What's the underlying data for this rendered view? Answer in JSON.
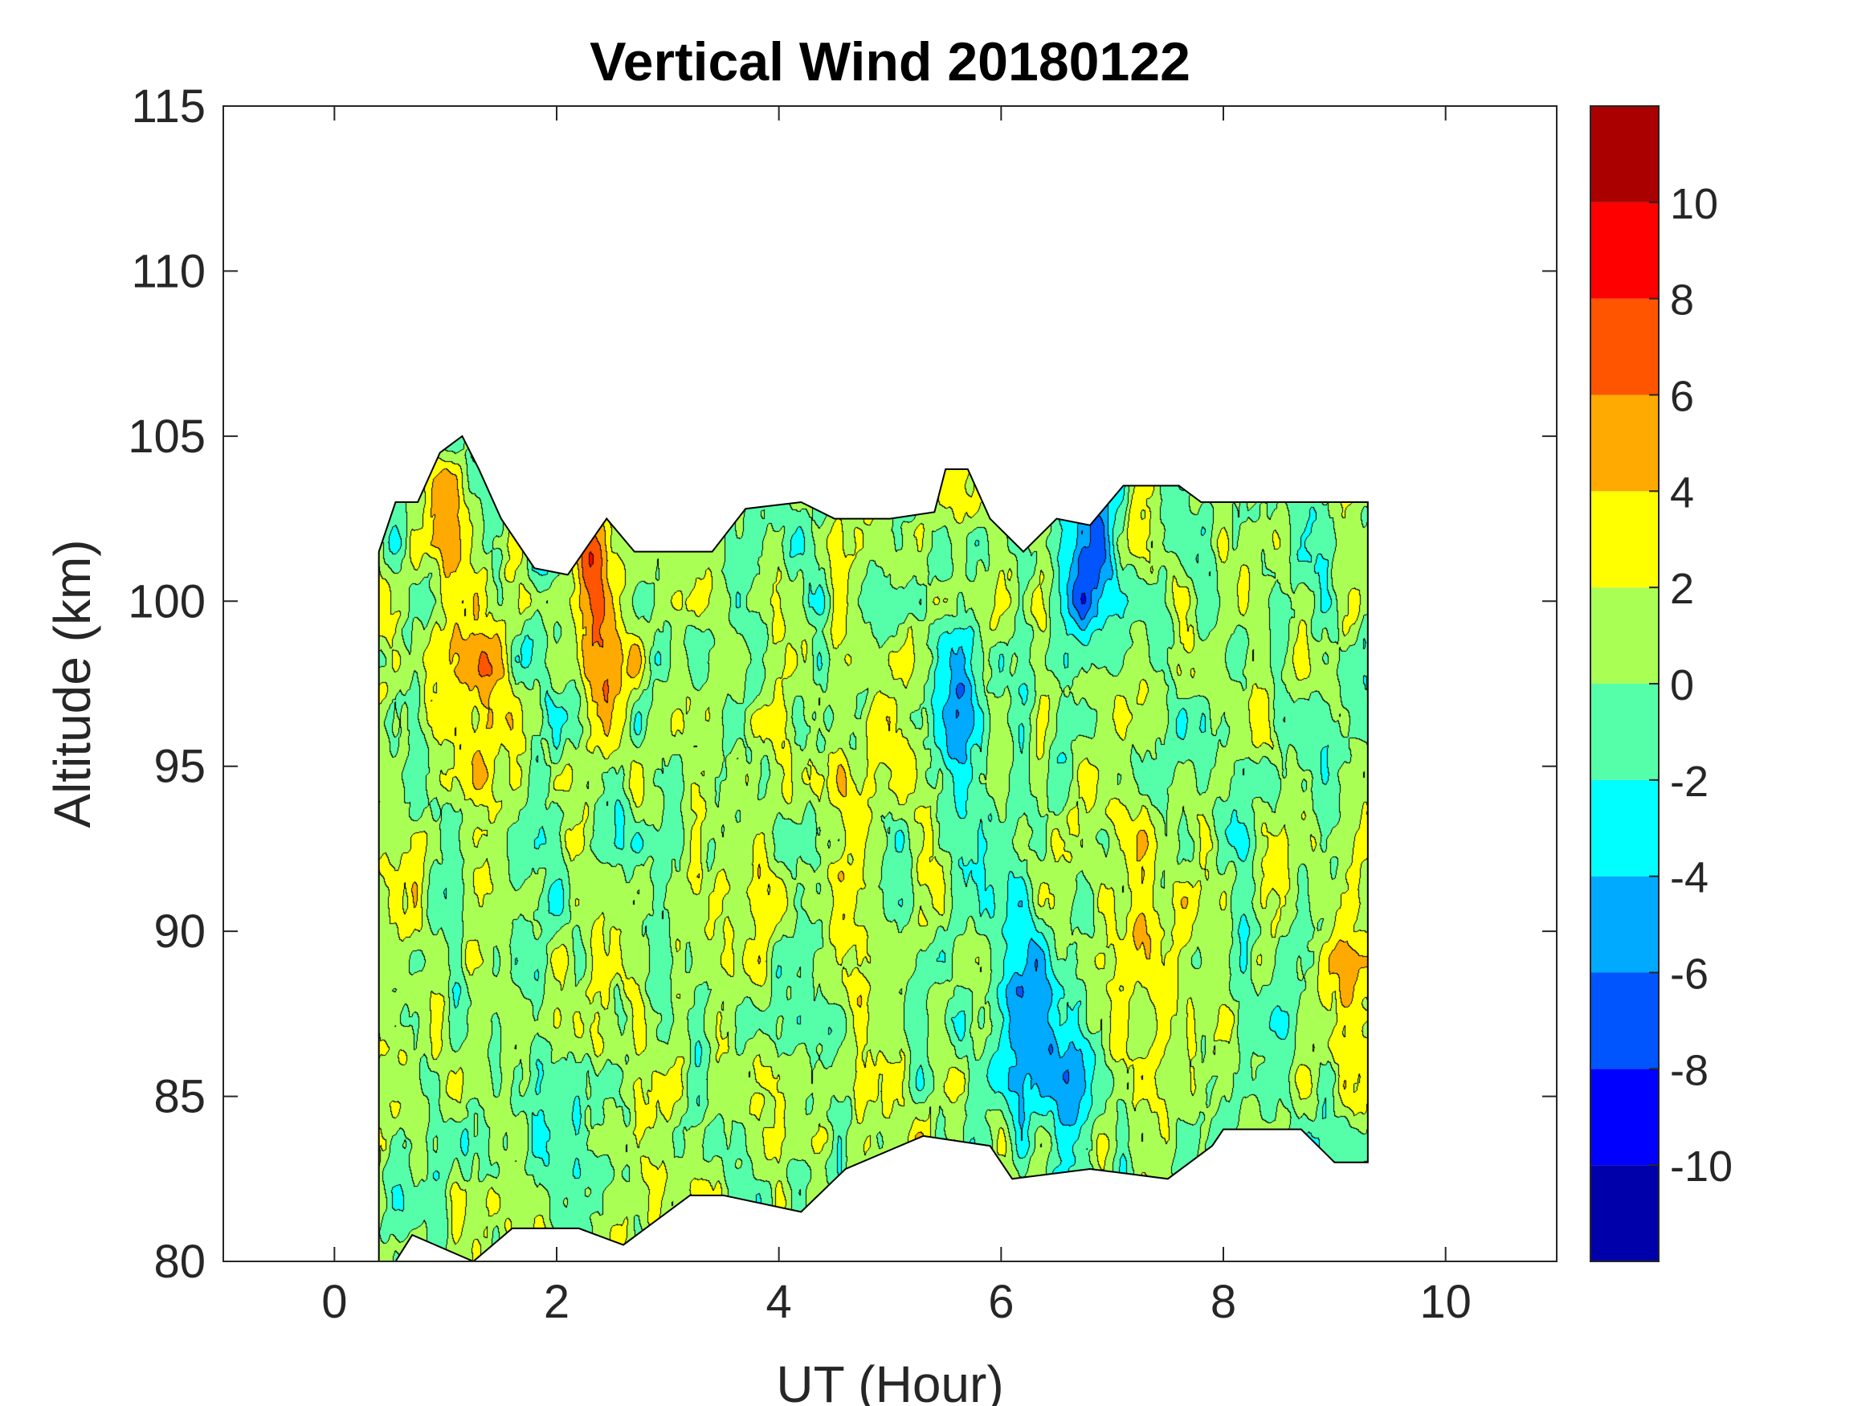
{
  "chart_data": {
    "type": "heatmap",
    "subtype": "filled-contour",
    "title": "Vertical Wind 20180122",
    "xlabel": "UT (Hour)",
    "ylabel": "Altitude (km)",
    "xlim": [
      -1,
      11
    ],
    "ylim": [
      80,
      115
    ],
    "xticks": [
      0,
      2,
      4,
      6,
      8,
      10
    ],
    "yticks": [
      80,
      85,
      90,
      95,
      100,
      105,
      110,
      115
    ],
    "grid": false,
    "data_extent": {
      "x": [
        0.4,
        9.3
      ],
      "y": [
        80,
        105
      ]
    },
    "colorbar": {
      "location": "right",
      "limits": [
        -12,
        12
      ],
      "ticks": [
        -10,
        -8,
        -6,
        -4,
        -2,
        0,
        2,
        4,
        6,
        8,
        10
      ],
      "levels": [
        -12,
        -10,
        -8,
        -6,
        -4,
        -2,
        0,
        2,
        4,
        6,
        8,
        10,
        12
      ],
      "colors": [
        "#0000AA",
        "#0000FF",
        "#0055FF",
        "#00AAFF",
        "#00FFFF",
        "#55FFAA",
        "#AAFF55",
        "#FFFF00",
        "#FFAA00",
        "#FF5500",
        "#FF0000",
        "#AA0000"
      ]
    },
    "features": [
      {
        "x": 1.35,
        "y": 96,
        "value": 5,
        "note": "positive band"
      },
      {
        "x": 2.3,
        "y": 100.5,
        "value": 7,
        "note": "peak"
      },
      {
        "x": 2.5,
        "y": 98,
        "value": 3
      },
      {
        "x": 4.7,
        "y": 93.5,
        "value": 3
      },
      {
        "x": 6.2,
        "y": 88,
        "value": -5
      },
      {
        "x": 5.6,
        "y": 97,
        "value": -4
      },
      {
        "x": 6.8,
        "y": 101,
        "value": -7
      },
      {
        "x": 6.6,
        "y": 86,
        "value": -6
      },
      {
        "x": 2.0,
        "y": 100,
        "value": -3
      },
      {
        "x": 7.3,
        "y": 90,
        "value": 2.5
      },
      {
        "x": 9.2,
        "y": 89,
        "value": 2.5
      },
      {
        "x": 2.8,
        "y": 84,
        "value": 2.5
      },
      {
        "x": 1.0,
        "y": 101,
        "value": 3
      }
    ]
  }
}
